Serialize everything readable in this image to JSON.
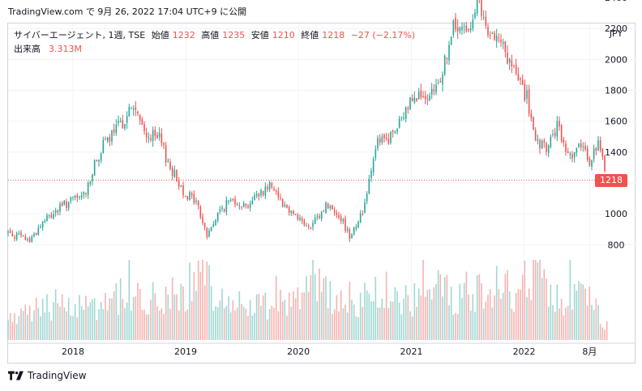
{
  "header": {
    "source_line": "TradingView.com で 9月 26, 2022 17:04 UTC+9 に公開"
  },
  "legend": {
    "symbol": "サイバーエージェント, 1週, TSE",
    "open_label": "始値",
    "open_value": "1232",
    "high_label": "高値",
    "high_value": "1235",
    "low_label": "安値",
    "low_value": "1210",
    "close_label": "終値",
    "close_value": "1218",
    "change": "−27 (−2.17%)",
    "volume_label": "出来高",
    "volume_value": "3.313M"
  },
  "axis": {
    "currency": "JPY",
    "current_price_label": "1218"
  },
  "footer": {
    "brand": "TradingView"
  },
  "colors": {
    "up": "#26a69a",
    "down": "#ef5350",
    "up_volume": "#9fd8d3",
    "down_volume": "#f7b3b1"
  },
  "chart_data": {
    "type": "candlestick",
    "ylim": [
      600,
      2470
    ],
    "yticks": [
      800,
      1000,
      1200,
      1400,
      1600,
      1800,
      2000,
      2200,
      2400
    ],
    "xticks": [
      {
        "label": "2018",
        "x": "2018-01-01"
      },
      {
        "label": "2019",
        "x": "2019-01-01"
      },
      {
        "label": "2020",
        "x": "2020-01-01"
      },
      {
        "label": "2021",
        "x": "2021-01-01"
      },
      {
        "label": "2022",
        "x": "2022-01-01"
      },
      {
        "label": "8月",
        "x": "2022-08-01"
      }
    ],
    "x_range": [
      "2017-06-05",
      "2022-11-21"
    ],
    "current_price": 1218,
    "last_bar": {
      "open": 1232,
      "high": 1235,
      "low": 1210,
      "close": 1218,
      "volume": "3.313M"
    },
    "series": [
      {
        "name": "close",
        "points": [
          [
            "2017-06-05",
            880
          ],
          [
            "2017-08-14",
            830
          ],
          [
            "2017-10-02",
            960
          ],
          [
            "2017-12-04",
            1060
          ],
          [
            "2018-02-05",
            1120
          ],
          [
            "2018-04-02",
            1420
          ],
          [
            "2018-05-28",
            1560
          ],
          [
            "2018-07-16",
            1700
          ],
          [
            "2018-08-20",
            1520
          ],
          [
            "2018-10-08",
            1480
          ],
          [
            "2018-11-12",
            1300
          ],
          [
            "2018-12-24",
            1150
          ],
          [
            "2019-02-04",
            1080
          ],
          [
            "2019-03-11",
            860
          ],
          [
            "2019-04-22",
            1020
          ],
          [
            "2019-06-03",
            1100
          ],
          [
            "2019-07-15",
            1050
          ],
          [
            "2019-08-26",
            1130
          ],
          [
            "2019-10-07",
            1200
          ],
          [
            "2019-11-18",
            1050
          ],
          [
            "2019-12-23",
            1000
          ],
          [
            "2020-02-03",
            900
          ],
          [
            "2020-03-09",
            980
          ],
          [
            "2020-03-30",
            1060
          ],
          [
            "2020-05-11",
            1000
          ],
          [
            "2020-06-15",
            860
          ],
          [
            "2020-07-27",
            1010
          ],
          [
            "2020-09-07",
            1450
          ],
          [
            "2020-10-19",
            1480
          ],
          [
            "2020-11-30",
            1600
          ],
          [
            "2021-01-11",
            1800
          ],
          [
            "2021-02-22",
            1700
          ],
          [
            "2021-04-05",
            1880
          ],
          [
            "2021-05-17",
            2200
          ],
          [
            "2021-06-28",
            2180
          ],
          [
            "2021-08-02",
            2380
          ],
          [
            "2021-09-13",
            2100
          ],
          [
            "2021-10-04",
            2220
          ],
          [
            "2021-11-01",
            2020
          ],
          [
            "2021-12-06",
            1900
          ],
          [
            "2022-01-10",
            1750
          ],
          [
            "2022-02-07",
            1450
          ],
          [
            "2022-03-14",
            1420
          ],
          [
            "2022-04-18",
            1560
          ],
          [
            "2022-05-23",
            1380
          ],
          [
            "2022-06-27",
            1430
          ],
          [
            "2022-08-01",
            1350
          ],
          [
            "2022-08-29",
            1450
          ],
          [
            "2022-09-12",
            1340
          ],
          [
            "2022-09-26",
            1218
          ]
        ]
      },
      {
        "name": "volume",
        "points": [
          [
            "2017-06-05",
            0.12
          ],
          [
            "2017-09-04",
            0.22
          ],
          [
            "2017-12-04",
            0.26
          ],
          [
            "2018-03-05",
            0.24
          ],
          [
            "2018-06-04",
            0.3
          ],
          [
            "2018-09-03",
            0.27
          ],
          [
            "2018-12-03",
            0.33
          ],
          [
            "2019-03-04",
            0.41
          ],
          [
            "2019-06-03",
            0.22
          ],
          [
            "2019-09-02",
            0.25
          ],
          [
            "2019-12-02",
            0.28
          ],
          [
            "2020-03-02",
            0.36
          ],
          [
            "2020-06-01",
            0.24
          ],
          [
            "2020-09-07",
            0.3
          ],
          [
            "2020-12-07",
            0.26
          ],
          [
            "2021-03-01",
            0.34
          ],
          [
            "2021-06-07",
            0.31
          ],
          [
            "2021-09-06",
            0.37
          ],
          [
            "2021-12-06",
            0.33
          ],
          [
            "2022-02-07",
            0.5
          ],
          [
            "2022-05-09",
            0.27
          ],
          [
            "2022-08-01",
            0.29
          ],
          [
            "2022-09-26",
            0.1
          ]
        ]
      }
    ]
  }
}
